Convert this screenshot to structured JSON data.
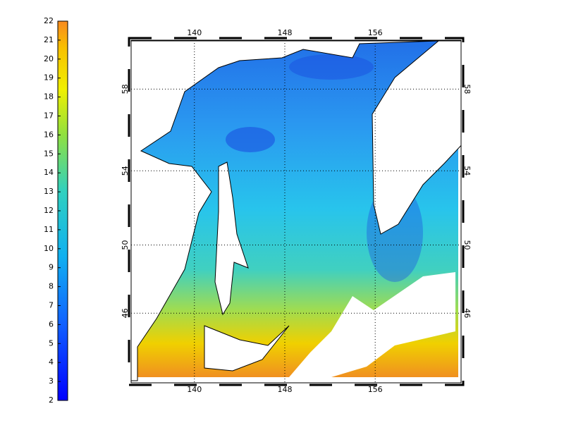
{
  "colorbar": {
    "lim": [
      2,
      22
    ],
    "ticks": [
      2,
      3,
      4,
      5,
      6,
      7,
      8,
      9,
      10,
      11,
      12,
      13,
      14,
      15,
      16,
      17,
      18,
      19,
      20,
      21,
      22
    ]
  },
  "map": {
    "projection": "mercator",
    "xlim": [
      134.4,
      163.6
    ],
    "ylim": [
      41.6,
      60.2
    ],
    "xticks": [
      140,
      148,
      156
    ],
    "yticks": [
      58,
      54,
      50,
      46
    ],
    "grid": true
  }
}
